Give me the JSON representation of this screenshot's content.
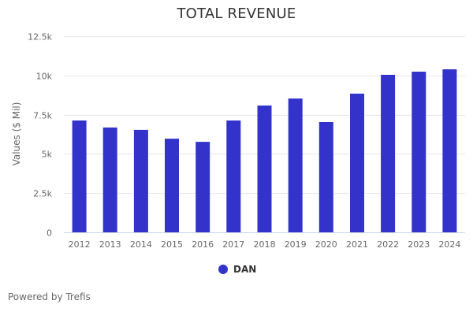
{
  "chart_data": {
    "type": "bar",
    "title": "TOTAL REVENUE",
    "xlabel": "",
    "ylabel": "Values ($ Mil)",
    "ylim": [
      0,
      12500
    ],
    "yticks": [
      0,
      2500,
      5000,
      7500,
      10000,
      12500
    ],
    "ytick_labels": [
      "0",
      "2.5k",
      "5k",
      "7.5k",
      "10k",
      "12.5k"
    ],
    "grid": true,
    "categories": [
      "2012",
      "2013",
      "2014",
      "2015",
      "2016",
      "2017",
      "2018",
      "2019",
      "2020",
      "2021",
      "2022",
      "2023",
      "2024"
    ],
    "series": [
      {
        "name": "DAN",
        "color": "#3333cc",
        "values": [
          7130,
          6680,
          6530,
          5970,
          5770,
          7130,
          8080,
          8530,
          7030,
          8840,
          10040,
          10240,
          10390
        ]
      }
    ],
    "legend": "bottom-center"
  },
  "footer": {
    "credit": "Powered by Trefis"
  }
}
